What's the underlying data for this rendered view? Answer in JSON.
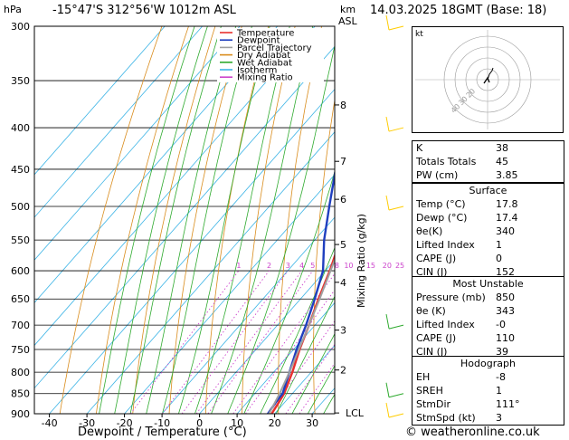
{
  "header": {
    "hpa_unit": "hPa",
    "location": "-15°47'S  312°56'W  1012m  ASL",
    "km_unit": "km",
    "asl_unit": "ASL",
    "datetime": "14.03.2025  18GMT  (Base: 18)"
  },
  "chart_data": {
    "type": "line",
    "title": "",
    "xlabel": "Dewpoint / Temperature (°C)",
    "ylabel": "hPa",
    "mixing_ratio_label": "Mixing Ratio (g/kg)",
    "xlim": [
      -44,
      36
    ],
    "ylim": [
      900,
      300
    ],
    "y_log_scale": true,
    "skew": true,
    "pressure_ticks": [
      300,
      350,
      400,
      450,
      500,
      550,
      600,
      650,
      700,
      750,
      800,
      850,
      900
    ],
    "temp_ticks": [
      -40,
      -30,
      -20,
      -10,
      0,
      10,
      20,
      30
    ],
    "km_ticks": [
      {
        "label": "8",
        "p": 375
      },
      {
        "label": "7",
        "p": 440
      },
      {
        "label": "6",
        "p": 490
      },
      {
        "label": "5",
        "p": 557
      },
      {
        "label": "4",
        "p": 620
      },
      {
        "label": "3",
        "p": 710
      },
      {
        "label": "2",
        "p": 795
      },
      {
        "label": "LCL",
        "p": 898
      }
    ],
    "mixing_ratio_values": [
      "1",
      "2",
      "3",
      "4",
      "5",
      "8",
      "10",
      "15",
      "20",
      "25"
    ],
    "legend": {
      "placement": "top-left",
      "entries": [
        {
          "name": "Temperature",
          "color": "#e8312e"
        },
        {
          "name": "Dewpoint",
          "color": "#1f3fbf"
        },
        {
          "name": "Parcel Trajectory",
          "color": "#a0a0a0"
        },
        {
          "name": "Dry Adiabat",
          "color": "#d98c1c"
        },
        {
          "name": "Wet Adiabat",
          "color": "#2eaa2e"
        },
        {
          "name": "Isotherm",
          "color": "#3cb4e6"
        },
        {
          "name": "Mixing Ratio",
          "color": "#cc44cc"
        }
      ]
    },
    "series": [
      {
        "name": "Temperature",
        "color": "#e8312e",
        "points": [
          [
            900,
            19.2
          ],
          [
            870,
            18.4
          ],
          [
            850,
            17.8
          ],
          [
            800,
            15
          ],
          [
            750,
            11.6
          ],
          [
            700,
            8.4
          ],
          [
            650,
            4.8
          ],
          [
            600,
            1.2
          ],
          [
            550,
            -3.2
          ],
          [
            500,
            -7.9
          ],
          [
            450,
            -13.2
          ],
          [
            400,
            -19.6
          ],
          [
            350,
            -27.4
          ],
          [
            300,
            -36
          ]
        ]
      },
      {
        "name": "Dewpoint",
        "color": "#1f3fbf",
        "points": [
          [
            900,
            18.2
          ],
          [
            870,
            17.6
          ],
          [
            850,
            17.4
          ],
          [
            800,
            14.2
          ],
          [
            750,
            10.8
          ],
          [
            700,
            7.6
          ],
          [
            650,
            3.8
          ],
          [
            600,
            -0.6
          ],
          [
            550,
            -7.5
          ],
          [
            500,
            -14
          ],
          [
            450,
            -21
          ],
          [
            400,
            -27.8
          ],
          [
            350,
            -34.5
          ],
          [
            300,
            -41
          ]
        ]
      },
      {
        "name": "Parcel Trajectory",
        "color": "#a0a0a0",
        "points": [
          [
            900,
            18.5
          ],
          [
            850,
            16.6
          ],
          [
            800,
            14.2
          ],
          [
            750,
            11.4
          ],
          [
            700,
            8.4
          ],
          [
            650,
            5.1
          ],
          [
            600,
            1.4
          ],
          [
            550,
            -2.6
          ],
          [
            500,
            -7.4
          ],
          [
            450,
            -12.8
          ],
          [
            400,
            -19.2
          ],
          [
            350,
            -27.1
          ],
          [
            300,
            -36.5
          ]
        ]
      }
    ]
  },
  "hodograph": {
    "label": "kt",
    "ring_labels": [
      "10",
      "20",
      "30",
      "40"
    ]
  },
  "wind_barbs_label": "",
  "indices_table": {
    "rows": [
      {
        "label": "K",
        "value": "38"
      },
      {
        "label": "Totals Totals",
        "value": "45"
      },
      {
        "label": "PW (cm)",
        "value": "3.85"
      }
    ]
  },
  "surface_table": {
    "title": "Surface",
    "rows": [
      {
        "label": "Temp (°C)",
        "value": "17.8"
      },
      {
        "label": "Dewp (°C)",
        "value": "17.4"
      },
      {
        "label": "θe(K)",
        "value": "340"
      },
      {
        "label": "Lifted Index",
        "value": "1"
      },
      {
        "label": "CAPE (J)",
        "value": "0"
      },
      {
        "label": "CIN (J)",
        "value": "152"
      }
    ]
  },
  "unstable_table": {
    "title": "Most Unstable",
    "rows": [
      {
        "label": "Pressure (mb)",
        "value": "850"
      },
      {
        "label": "θe (K)",
        "value": "343"
      },
      {
        "label": "Lifted Index",
        "value": "-0"
      },
      {
        "label": "CAPE (J)",
        "value": "110"
      },
      {
        "label": "CIN (J)",
        "value": "39"
      }
    ]
  },
  "hodograph_table": {
    "title": "Hodograph",
    "rows": [
      {
        "label": "EH",
        "value": "-8"
      },
      {
        "label": "SREH",
        "value": "1"
      },
      {
        "label": "StmDir",
        "value": "111°"
      },
      {
        "label": "StmSpd (kt)",
        "value": "3"
      }
    ]
  },
  "footer": {
    "copyright": "© weatheronline.co.uk"
  }
}
